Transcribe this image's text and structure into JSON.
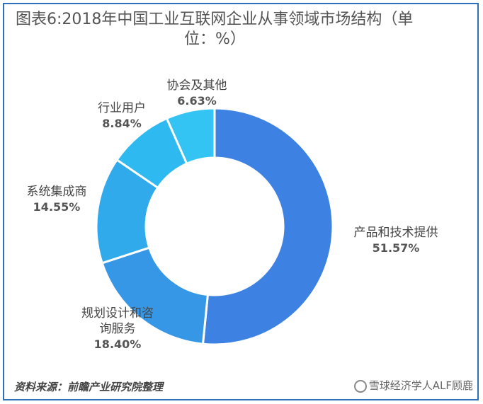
{
  "title_line1": "图表6:2018年中国工业互联网企业从事领域市场结构（单",
  "title_line2": "位：%）",
  "source": "资料来源：前瞻产业研究院整理",
  "watermark": "雪球经济学人ALF顾鹿",
  "chart_data": {
    "type": "pie",
    "donut": true,
    "start_angle_deg": 0,
    "direction": "clockwise",
    "slices": [
      {
        "label": "产品和技术提供",
        "label_lines": [
          "产品和技术提供"
        ],
        "value": 51.57,
        "pct_text": "51.57%",
        "color": "#3d82e3"
      },
      {
        "label": "规划设计和咨询服务",
        "label_lines": [
          "规划设计和咨",
          "询服务"
        ],
        "value": 18.4,
        "pct_text": "18.40%",
        "color": "#3597e6"
      },
      {
        "label": "系统集成商",
        "label_lines": [
          "系统集成商"
        ],
        "value": 14.55,
        "pct_text": "14.55%",
        "color": "#31aaec"
      },
      {
        "label": "行业用户",
        "label_lines": [
          "行业用户"
        ],
        "value": 8.84,
        "pct_text": "8.84%",
        "color": "#2ebaf0"
      },
      {
        "label": "协会及其他",
        "label_lines": [
          "协会及其他"
        ],
        "value": 6.63,
        "pct_text": "6.63%",
        "color": "#33c4f3"
      }
    ]
  }
}
